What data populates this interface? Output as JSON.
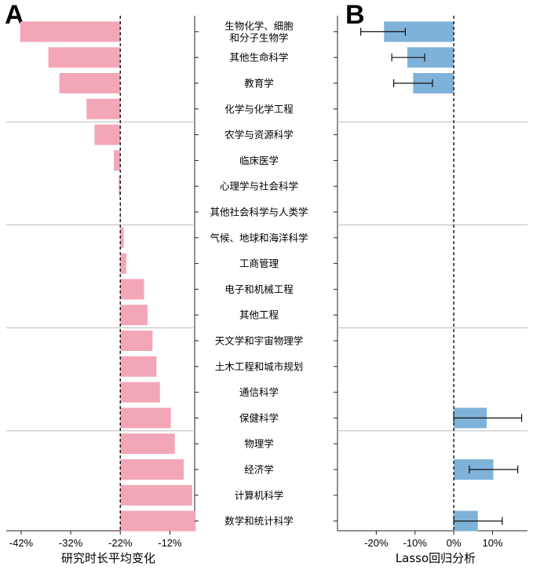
{
  "chart_data": [
    {
      "panel": "A",
      "type": "bar",
      "orientation": "horizontal",
      "xlabel": "研究时长平均变化",
      "xticks": [
        "-42%",
        "-32%",
        "-22%",
        "-12%"
      ],
      "xtick_values": [
        -42,
        -32,
        -22,
        -12
      ],
      "xlim": [
        -45,
        -7
      ],
      "reference_line": -22,
      "bar_color": "#f2a6b8",
      "categories": [
        [
          "生物化学、细胞",
          "和分子生物学"
        ],
        [
          "其他生命科学"
        ],
        [
          "教育学"
        ],
        [
          "化学与化学工程"
        ],
        [
          "农学与资源科学"
        ],
        [
          "临床医学"
        ],
        [
          "心理学与社会科学"
        ],
        [
          "其他社会科学与人类学"
        ],
        [
          "气候、地球和海洋科学"
        ],
        [
          "工商管理"
        ],
        [
          "电子和机械工程"
        ],
        [
          "其他工程"
        ],
        [
          "天文学和宇宙物理学"
        ],
        [
          "土木工程和城市规划"
        ],
        [
          "通信科学"
        ],
        [
          "保健科学"
        ],
        [
          "物理学"
        ],
        [
          "经济学"
        ],
        [
          "计算机科学"
        ],
        [
          "数学和统计科学"
        ]
      ],
      "values": [
        -42.2,
        -36.5,
        -34.3,
        -28.8,
        -27.2,
        -23.3,
        -22.3,
        -22.0,
        -21.3,
        -20.8,
        -17.2,
        -16.5,
        -15.5,
        -14.7,
        -14.0,
        -11.8,
        -11.0,
        -9.2,
        -7.5,
        -6.8
      ]
    },
    {
      "panel": "B",
      "type": "bar",
      "orientation": "horizontal",
      "xlabel": "Lasso回归分析",
      "xticks": [
        "-20%",
        "-10%",
        "0%",
        "10%"
      ],
      "xtick_values": [
        -20,
        -10,
        0,
        10
      ],
      "xlim": [
        -30,
        19
      ],
      "reference_line": 0,
      "bar_color": "#7fb2d9",
      "points": [
        {
          "category_index": 0,
          "value": -18,
          "err_low": -24,
          "err_high": -12.5
        },
        {
          "category_index": 1,
          "value": -12,
          "err_low": -16,
          "err_high": -7.5
        },
        {
          "category_index": 2,
          "value": -10.5,
          "err_low": -15.5,
          "err_high": -5.5
        },
        {
          "category_index": 15,
          "value": 8.5,
          "err_low": 0,
          "err_high": 17.5
        },
        {
          "category_index": 17,
          "value": 10.2,
          "err_low": 4,
          "err_high": 16.5
        },
        {
          "category_index": 19,
          "value": 6.2,
          "err_low": 0,
          "err_high": 12.5
        }
      ]
    }
  ],
  "panel_letters": {
    "a": "A",
    "b": "B"
  },
  "group_separators_after": [
    3,
    7,
    11,
    15
  ]
}
